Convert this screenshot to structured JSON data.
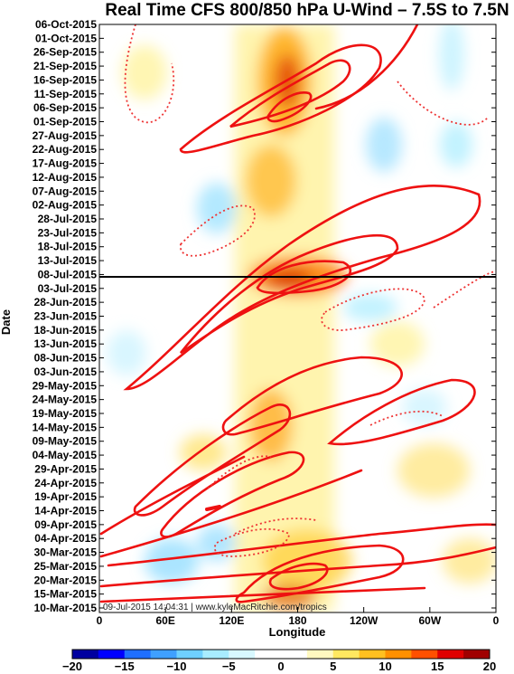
{
  "chart_data": {
    "type": "heatmap",
    "title": "Real Time CFS 800/850 hPa U-Wind – 7.5S to 7.5N",
    "xlabel": "Longitude",
    "ylabel": "Date",
    "x_ticks": [
      "0",
      "60E",
      "120E",
      "180",
      "120W",
      "60W",
      "0"
    ],
    "y_ticks": [
      "06-Oct-2015",
      "01-Oct-2015",
      "26-Sep-2015",
      "21-Sep-2015",
      "16-Sep-2015",
      "11-Sep-2015",
      "06-Sep-2015",
      "01-Sep-2015",
      "27-Aug-2015",
      "22-Aug-2015",
      "17-Aug-2015",
      "12-Aug-2015",
      "07-Aug-2015",
      "02-Aug-2015",
      "28-Jul-2015",
      "23-Jul-2015",
      "18-Jul-2015",
      "13-Jul-2015",
      "08-Jul-2015",
      "03-Jul-2015",
      "28-Jun-2015",
      "23-Jun-2015",
      "18-Jun-2015",
      "13-Jun-2015",
      "08-Jun-2015",
      "03-Jun-2015",
      "29-May-2015",
      "24-May-2015",
      "19-May-2015",
      "14-May-2015",
      "09-May-2015",
      "04-May-2015",
      "29-Apr-2015",
      "24-Apr-2015",
      "19-Apr-2015",
      "14-Apr-2015",
      "09-Apr-2015",
      "04-Apr-2015",
      "30-Mar-2015",
      "25-Mar-2015",
      "20-Mar-2015",
      "15-Mar-2015",
      "10-Mar-2015"
    ],
    "colorbar": {
      "ticks": [
        "−20",
        "−15",
        "−10",
        "−5",
        "0",
        "5",
        "10",
        "15",
        "20"
      ],
      "range": [
        -20,
        20
      ],
      "colors": [
        "#0000a0",
        "#0000ff",
        "#1f6fff",
        "#3fa0ff",
        "#6fd0ff",
        "#a8ecff",
        "#d8f8ff",
        "#ffffff",
        "#ffffff",
        "#fff8c0",
        "#ffe860",
        "#ffc020",
        "#ff9000",
        "#ff5000",
        "#e00000",
        "#a00000"
      ]
    },
    "current_date_line": "08-Jul-2015",
    "footer_text": "09-Jul-2015 14:04:31 | www.kyleMacRitchie.com/tropics",
    "grid": false,
    "legend": "none"
  }
}
